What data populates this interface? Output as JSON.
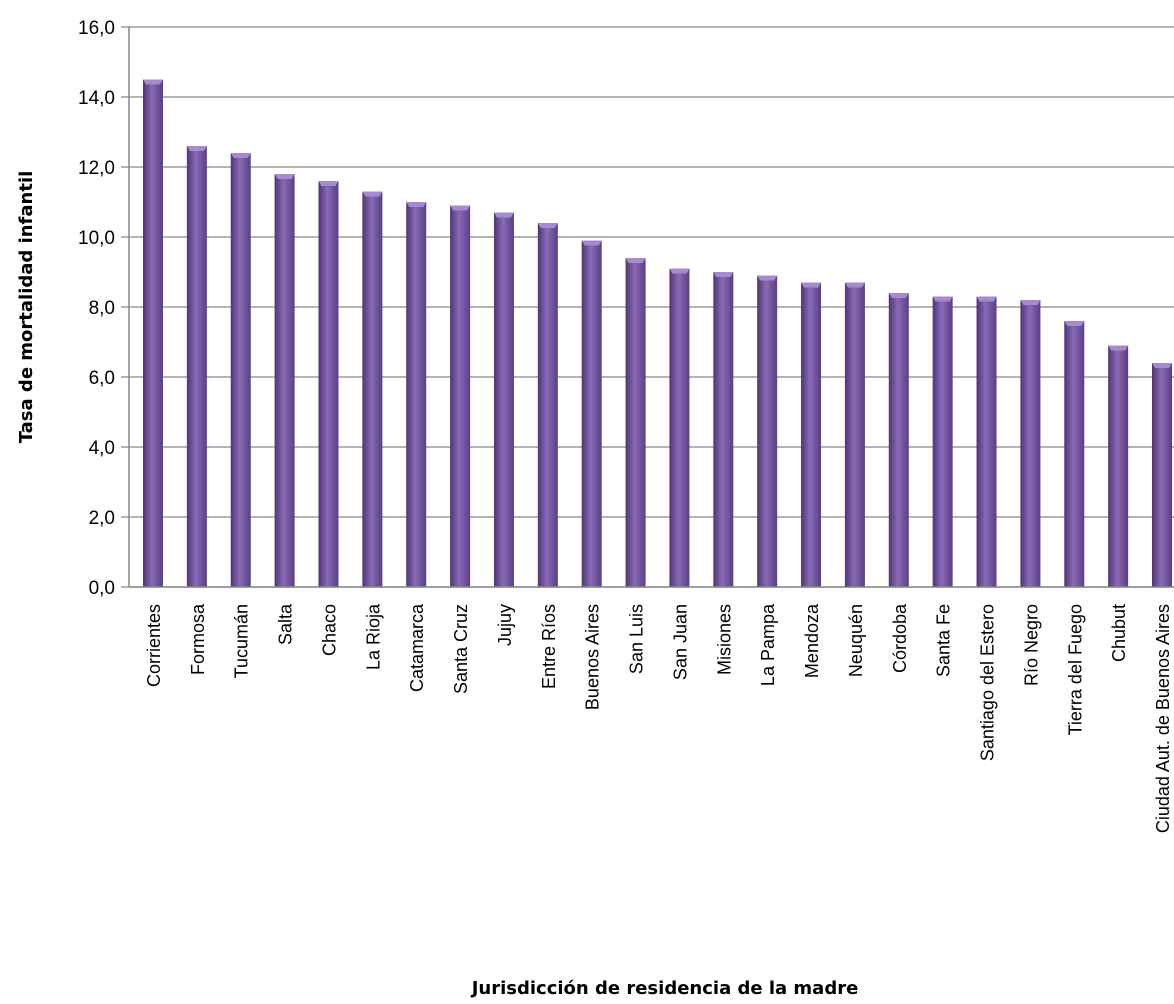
{
  "chart_data": {
    "type": "bar",
    "title": "",
    "xlabel": "Jurisdicción  de residencia de la madre",
    "ylabel": "Tasa de mortalidad infantil",
    "ylim": [
      0,
      16
    ],
    "yticks": [
      "0,0",
      "2,0",
      "4,0",
      "6,0",
      "8,0",
      "10,0",
      "12,0",
      "14,0",
      "16,0"
    ],
    "grid": true,
    "legend": "none",
    "categories": [
      "Corrientes",
      "Formosa",
      "Tucumán",
      "Salta",
      "Chaco",
      "La Rioja",
      "Catamarca",
      "Santa Cruz",
      "Jujuy",
      "Entre Ríos",
      "Buenos Aires",
      "San Luis",
      "San Juan",
      "Misiones",
      "La Pampa",
      "Mendoza",
      "Neuquén",
      "Córdoba",
      "Santa Fe",
      "Santiago del Estero",
      "Río Negro",
      "Tierra del Fuego",
      "Chubut",
      "Ciudad Aut. de  Buenos Aires"
    ],
    "values": [
      14.5,
      12.6,
      12.4,
      11.8,
      11.6,
      11.3,
      11.0,
      10.9,
      10.7,
      10.4,
      9.9,
      9.4,
      9.1,
      9.0,
      8.9,
      8.7,
      8.7,
      8.4,
      8.3,
      8.3,
      8.2,
      7.6,
      6.9,
      6.4
    ],
    "colors": {
      "bar": "#7a5aa6",
      "bar_dark": "#4e3574",
      "bar_light": "#a68bcb",
      "grid": "#878787"
    }
  }
}
